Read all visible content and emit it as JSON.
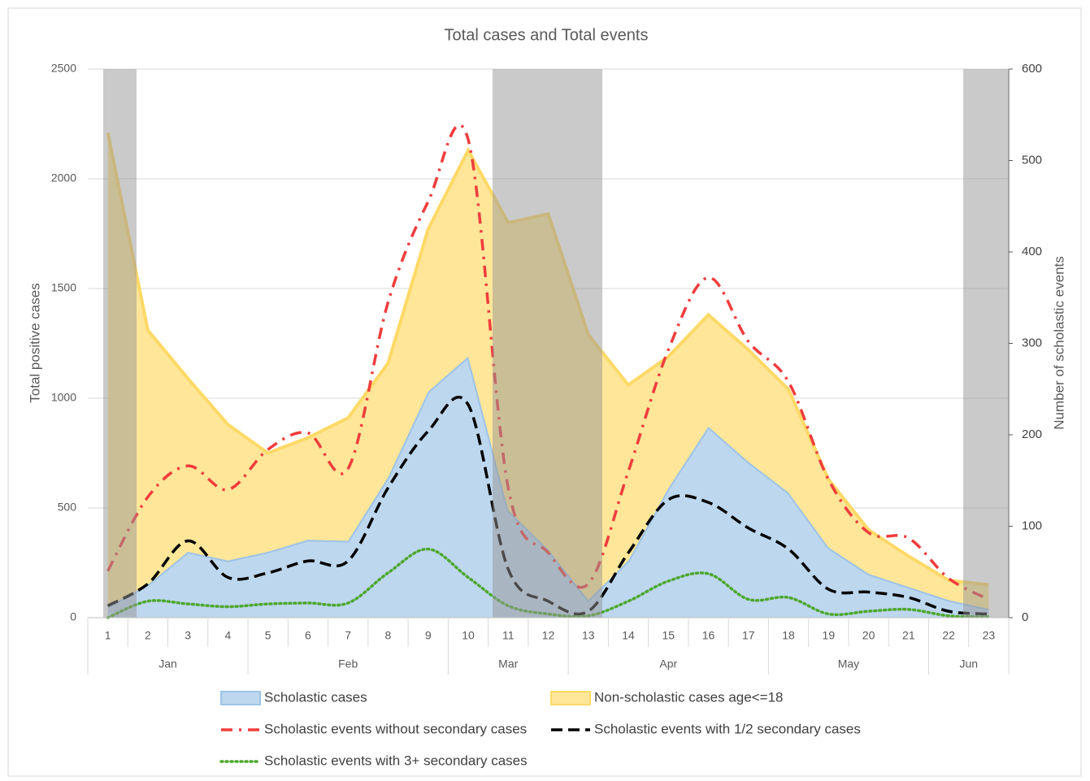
{
  "chart_data": {
    "type": "area-line",
    "title": "Total cases and Total events",
    "y_label": "Total positive cases",
    "y2_label": "Number of  scholastic events",
    "categories": [
      1,
      2,
      3,
      4,
      5,
      6,
      7,
      8,
      9,
      10,
      11,
      12,
      13,
      14,
      15,
      16,
      17,
      18,
      19,
      20,
      21,
      22,
      23
    ],
    "groups": [
      {
        "label": "Jan",
        "from": 1,
        "to": 4
      },
      {
        "label": "Feb",
        "from": 5,
        "to": 9
      },
      {
        "label": "Mar",
        "from": 10,
        "to": 12
      },
      {
        "label": "Apr",
        "from": 13,
        "to": 17
      },
      {
        "label": "May",
        "from": 18,
        "to": 21
      },
      {
        "label": "Jun",
        "from": 22,
        "to": 23
      }
    ],
    "ylim": [
      0,
      2500
    ],
    "yticks": [
      0,
      500,
      1000,
      1500,
      2000,
      2500
    ],
    "y2lim": [
      0,
      600
    ],
    "y2ticks": [
      0,
      100,
      200,
      300,
      400,
      500,
      600
    ],
    "grid": true,
    "series": [
      {
        "name": "Scholastic cases",
        "type": "area",
        "stack": true,
        "color": "#bdd7ee",
        "edge": "#9dc3e6",
        "values": [
          50,
          150,
          300,
          260,
          300,
          355,
          350,
          640,
          1030,
          1190,
          490,
          310,
          80,
          260,
          590,
          870,
          710,
          570,
          320,
          200,
          140,
          80,
          40
        ]
      },
      {
        "name": "Non-scholastic cases age<=18",
        "type": "area",
        "stack": true,
        "color": "#ffe699",
        "edge": "#ffd966",
        "values": [
          2160,
          1160,
          790,
          620,
          450,
          465,
          560,
          520,
          740,
          940,
          1310,
          1530,
          1210,
          800,
          600,
          510,
          510,
          470,
          310,
          200,
          140,
          90,
          110
        ]
      },
      {
        "name": "Scholastic events without secondary cases",
        "type": "line",
        "axis": "y2",
        "color": "#f03c3c",
        "dash": "dash-dot",
        "values": [
          51,
          132,
          166,
          140,
          184,
          202,
          163,
          345,
          455,
          523,
          142,
          71,
          37,
          160,
          293,
          372,
          302,
          258,
          151,
          93,
          87,
          43,
          20
        ]
      },
      {
        "name": "Scholastic events with 1/2 secondary cases",
        "type": "line",
        "axis": "y2",
        "color": "#000000",
        "dash": "dash",
        "values": [
          13,
          37,
          84,
          44,
          49,
          62,
          62,
          142,
          204,
          233,
          53,
          18,
          7,
          71,
          129,
          126,
          98,
          75,
          31,
          28,
          22,
          7,
          4
        ]
      },
      {
        "name": "Scholastic events with 3+ secondary cases",
        "type": "line",
        "axis": "y2",
        "color": "#4ea72e",
        "dash": "dot",
        "values": [
          0,
          18,
          15,
          12,
          15,
          16,
          16,
          49,
          75,
          44,
          13,
          4,
          2,
          18,
          40,
          48,
          20,
          22,
          4,
          7,
          9,
          2,
          1
        ]
      }
    ]
  }
}
